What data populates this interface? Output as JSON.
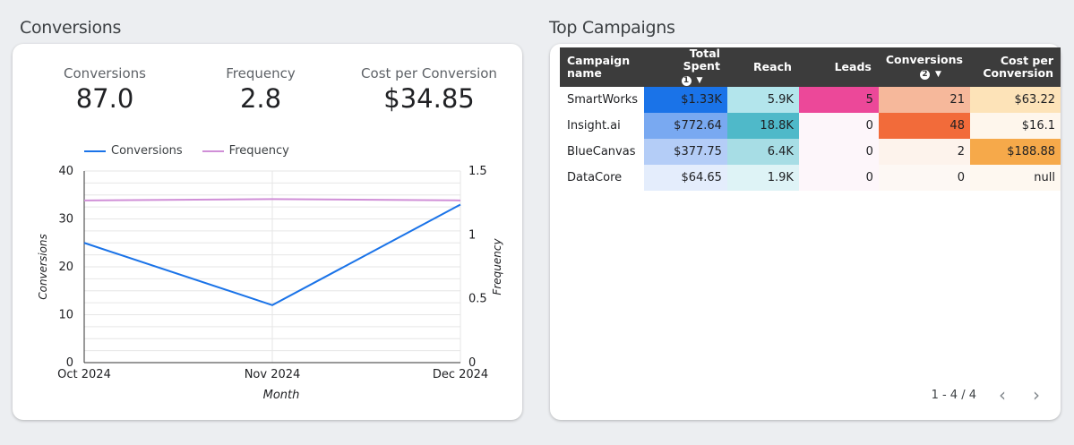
{
  "conversions_section": {
    "title": "Conversions",
    "kpis": [
      {
        "label": "Conversions",
        "value": "87.0"
      },
      {
        "label": "Frequency",
        "value": "2.8"
      },
      {
        "label": "Cost per Conversion",
        "value": "$34.85"
      }
    ]
  },
  "chart_data": {
    "type": "line",
    "x": [
      "Oct 2024",
      "Nov 2024",
      "Dec 2024"
    ],
    "series": [
      {
        "name": "Conversions",
        "axis": "left",
        "color": "#1a73e8",
        "values": [
          25,
          12,
          33
        ]
      },
      {
        "name": "Frequency",
        "axis": "right",
        "color": "#d08fd7",
        "values": [
          1.27,
          1.28,
          1.27
        ]
      }
    ],
    "xlabel": "Month",
    "ylabel": "Conversions",
    "y2label": "Frequency",
    "ylim": [
      0,
      40
    ],
    "y2lim": [
      0,
      1.5
    ],
    "yticks": [
      "0",
      "10",
      "20",
      "30",
      "40"
    ],
    "y2ticks": [
      "0",
      "0.5",
      "1",
      "1.5"
    ],
    "grid": true,
    "legend": "top"
  },
  "campaigns_section": {
    "title": "Top Campaigns",
    "columns": [
      {
        "l1": "Campaign",
        "l2": "name"
      },
      {
        "l1": "Total Spent",
        "badge": "1"
      },
      {
        "l1": "Reach"
      },
      {
        "l1": "Leads"
      },
      {
        "l1": "Conversions",
        "badge": "2"
      },
      {
        "l1": "Cost per",
        "l2": "Conversion"
      }
    ],
    "rows": [
      {
        "name": "SmartWorks",
        "spent": "$1.33K",
        "reach": "5.9K",
        "leads": "5",
        "conversions": "21",
        "cpc": "$63.22"
      },
      {
        "name": "Insight.ai",
        "spent": "$772.64",
        "reach": "18.8K",
        "leads": "0",
        "conversions": "48",
        "cpc": "$16.1"
      },
      {
        "name": "BlueCanvas",
        "spent": "$377.75",
        "reach": "6.4K",
        "leads": "0",
        "conversions": "2",
        "cpc": "$188.88"
      },
      {
        "name": "DataCore",
        "spent": "$64.65",
        "reach": "1.9K",
        "leads": "0",
        "conversions": "0",
        "cpc": "null"
      }
    ],
    "cell_colors": [
      {
        "spent": "#1a73e8",
        "reach": "#b3e5ec",
        "leads": "#ec4899",
        "conversions": "#f6b89b",
        "cpc": "#fde3b8"
      },
      {
        "spent": "#79a9f1",
        "reach": "#4fb9c9",
        "leads": "#fdf6fa",
        "conversions": "#f26b3a",
        "cpc": "#fef6ec"
      },
      {
        "spent": "#b4cdf7",
        "reach": "#a7dde5",
        "leads": "#fdf6fa",
        "conversions": "#fdf3ec",
        "cpc": "#f6a94a"
      },
      {
        "spent": "#e4edfc",
        "reach": "#def3f6",
        "leads": "#fdf6fa",
        "conversions": "#fdf8f4",
        "cpc": "#fef8f0"
      }
    ],
    "pager": {
      "text": "1 - 4 / 4",
      "prev_icon": "chevron-left-icon",
      "next_icon": "chevron-right-icon"
    }
  }
}
